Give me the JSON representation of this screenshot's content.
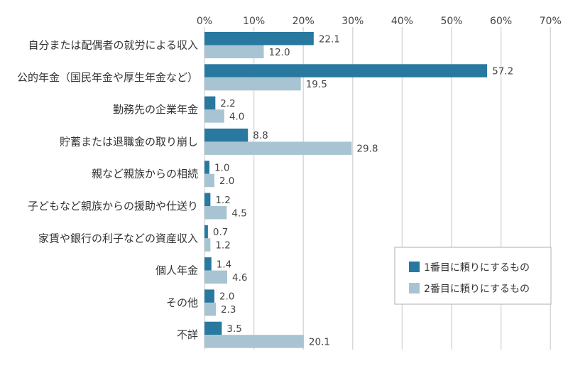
{
  "chart_data": {
    "type": "bar",
    "orientation": "horizontal",
    "categories": [
      "自分または配偶者の就労による収入",
      "公的年金（国民年金や厚生年金など）",
      "勤務先の企業年金",
      "貯蓄または退職金の取り崩し",
      "親など親族からの相続",
      "子どもなど親族からの援助や仕送り",
      "家賃や銀行の利子などの資産収入",
      "個人年金",
      "その他",
      "不詳"
    ],
    "series": [
      {
        "name": "1番目に頼りにするもの",
        "color": "#2878a0",
        "values": [
          22.1,
          57.2,
          2.2,
          8.8,
          1.0,
          1.2,
          0.7,
          1.4,
          2.0,
          3.5
        ]
      },
      {
        "name": "2番目に頼りにするもの",
        "color": "#a8c4d2",
        "values": [
          12.0,
          19.5,
          4.0,
          29.8,
          2.0,
          4.5,
          1.2,
          4.6,
          2.3,
          20.1
        ]
      }
    ],
    "value_labels": [
      [
        "22.1",
        "57.2",
        "2.2",
        "8.8",
        "1.0",
        "1.2",
        "0.7",
        "1.4",
        "2.0",
        "3.5"
      ],
      [
        "12.0",
        "19.5",
        "4.0",
        "29.8",
        "2.0",
        "4.5",
        "1.2",
        "4.6",
        "2.3",
        "20.1"
      ]
    ],
    "xlim": [
      0,
      70
    ],
    "xticks": [
      0,
      10,
      20,
      30,
      40,
      50,
      60,
      70
    ],
    "xtick_labels": [
      "0%",
      "10%",
      "20%",
      "30%",
      "40%",
      "50%",
      "60%",
      "70%"
    ],
    "axis_position": "top",
    "grid": true,
    "legend_position": "bottom-right",
    "title": "",
    "xlabel": "",
    "ylabel": ""
  }
}
